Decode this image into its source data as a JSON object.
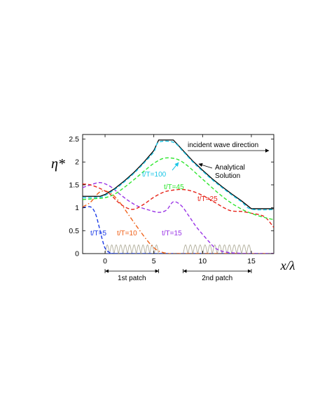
{
  "chart_data": {
    "type": "line",
    "title": "",
    "xlabel": "x/λ",
    "ylabel": "η*",
    "xlim": [
      -2.3,
      17.3
    ],
    "ylim": [
      0,
      2.6
    ],
    "xticks": [
      0,
      5,
      10,
      15
    ],
    "yticks": [
      0,
      0.5,
      1,
      1.5,
      2,
      2.5
    ],
    "xtick_labels": [
      "0",
      "5",
      "10",
      "15"
    ],
    "ytick_labels": [
      "0",
      "0.5",
      "1",
      "1.5",
      "2",
      "2.5"
    ],
    "grid": false,
    "colors": {
      "analytical": "#000000",
      "t100": "#1ac6e6",
      "t45": "#2ee62e",
      "t25": "#e6251a",
      "t15": "#9933e6",
      "t10": "#f06018",
      "t5": "#1a3ae6",
      "patch": "#b0ad9a"
    },
    "series": [
      {
        "name": "Analytical Solution",
        "key": "analytical",
        "style": "solid",
        "x": [
          -2.3,
          -0.5,
          0,
          1,
          2,
          3,
          4,
          5,
          5.5,
          7,
          8,
          9,
          10,
          11,
          12,
          13,
          14,
          15,
          17.3
        ],
        "y": [
          1.25,
          1.25,
          1.29,
          1.42,
          1.59,
          1.78,
          2.0,
          2.25,
          2.48,
          2.48,
          2.25,
          2.02,
          1.82,
          1.63,
          1.46,
          1.3,
          1.15,
          0.98,
          0.98
        ]
      },
      {
        "name": "t/T=100",
        "key": "t100",
        "style": "dashed",
        "x": [
          -2.3,
          -0.5,
          0,
          1,
          2,
          3,
          4,
          5,
          5.5,
          7,
          8,
          9,
          10,
          11,
          12,
          13,
          14,
          15,
          17.3
        ],
        "y": [
          1.22,
          1.23,
          1.27,
          1.4,
          1.57,
          1.76,
          1.98,
          2.22,
          2.43,
          2.43,
          2.23,
          2.0,
          1.8,
          1.61,
          1.44,
          1.28,
          1.13,
          0.97,
          0.96
        ]
      },
      {
        "name": "t/T=45",
        "key": "t45",
        "style": "dashed",
        "x": [
          -2.3,
          -1,
          0,
          1,
          2,
          3,
          4,
          5,
          6,
          7,
          7.7,
          8.5,
          9.5,
          10.5,
          11.5,
          12.5,
          13.5,
          14.5,
          15.5,
          16.5,
          17.3
        ],
        "y": [
          1.18,
          1.2,
          1.22,
          1.3,
          1.45,
          1.62,
          1.8,
          1.97,
          2.08,
          2.08,
          2.03,
          1.91,
          1.72,
          1.53,
          1.34,
          1.17,
          1.03,
          0.92,
          0.84,
          0.78,
          0.74
        ]
      },
      {
        "name": "t/T=25",
        "key": "t25",
        "style": "dashed",
        "x": [
          -2.3,
          -1.5,
          -0.5,
          0.5,
          1.3,
          2.2,
          3,
          4,
          5,
          6,
          6.8,
          7.8,
          8.8,
          10,
          11,
          12.2,
          13,
          14,
          15,
          15.8,
          16.5,
          17.3
        ],
        "y": [
          1.52,
          1.5,
          1.42,
          1.3,
          1.13,
          1.0,
          0.97,
          1.08,
          1.23,
          1.34,
          1.38,
          1.4,
          1.37,
          1.27,
          1.15,
          1.0,
          0.93,
          0.92,
          0.88,
          0.85,
          0.78,
          0.57
        ]
      },
      {
        "name": "t/T=15",
        "key": "t15",
        "style": "dashed",
        "x": [
          -2.3,
          -1.5,
          -0.5,
          0.5,
          1.5,
          2.5,
          3.5,
          4.5,
          5.5,
          6.3,
          7,
          7.8,
          8.6,
          9.3,
          10,
          10.7,
          11.3,
          12,
          12.8,
          13.6,
          14.5,
          17.3
        ],
        "y": [
          1.44,
          1.5,
          1.55,
          1.47,
          1.3,
          1.14,
          1.02,
          0.95,
          0.9,
          0.95,
          1.13,
          1.05,
          0.82,
          0.6,
          0.42,
          0.25,
          0.12,
          0.05,
          0.02,
          0.01,
          0.0,
          0.0
        ]
      },
      {
        "name": "t/T=10",
        "key": "t10",
        "style": "dashdot",
        "x": [
          -2.3,
          -1.5,
          -0.5,
          0.5,
          1.5,
          2.5,
          3.5,
          4.5,
          5.3,
          6.0,
          6.7,
          7.5,
          17.3
        ],
        "y": [
          1.02,
          1.12,
          1.35,
          1.33,
          1.12,
          0.82,
          0.52,
          0.24,
          0.08,
          0.02,
          0.0,
          0.0,
          0.0
        ]
      },
      {
        "name": "t/T=5",
        "key": "t5",
        "style": "dashed",
        "x": [
          -2.3,
          -1.5,
          -1.0,
          -0.6,
          -0.3,
          0.0,
          0.4,
          0.9,
          1.5,
          17.3
        ],
        "y": [
          1.0,
          1.02,
          0.88,
          0.58,
          0.32,
          0.12,
          0.03,
          0.0,
          0.0,
          0.0
        ]
      }
    ],
    "patches": [
      {
        "label": "1st patch",
        "x_start": 0,
        "x_end": 5.5,
        "ripples": 12,
        "height": 0.19
      },
      {
        "label": "2nd patch",
        "x_start": 8,
        "x_end": 15,
        "ripples": 14,
        "height": 0.19
      }
    ],
    "labels": {
      "t5": "t/T=5",
      "t10": "t/T=10",
      "t15": "t/T=15",
      "t25": "t/T=25",
      "t45": "t/T=45",
      "t100": "t/T=100",
      "analytical_1": "Analytical",
      "analytical_2": "Solution",
      "incident": "incident wave direction"
    }
  }
}
